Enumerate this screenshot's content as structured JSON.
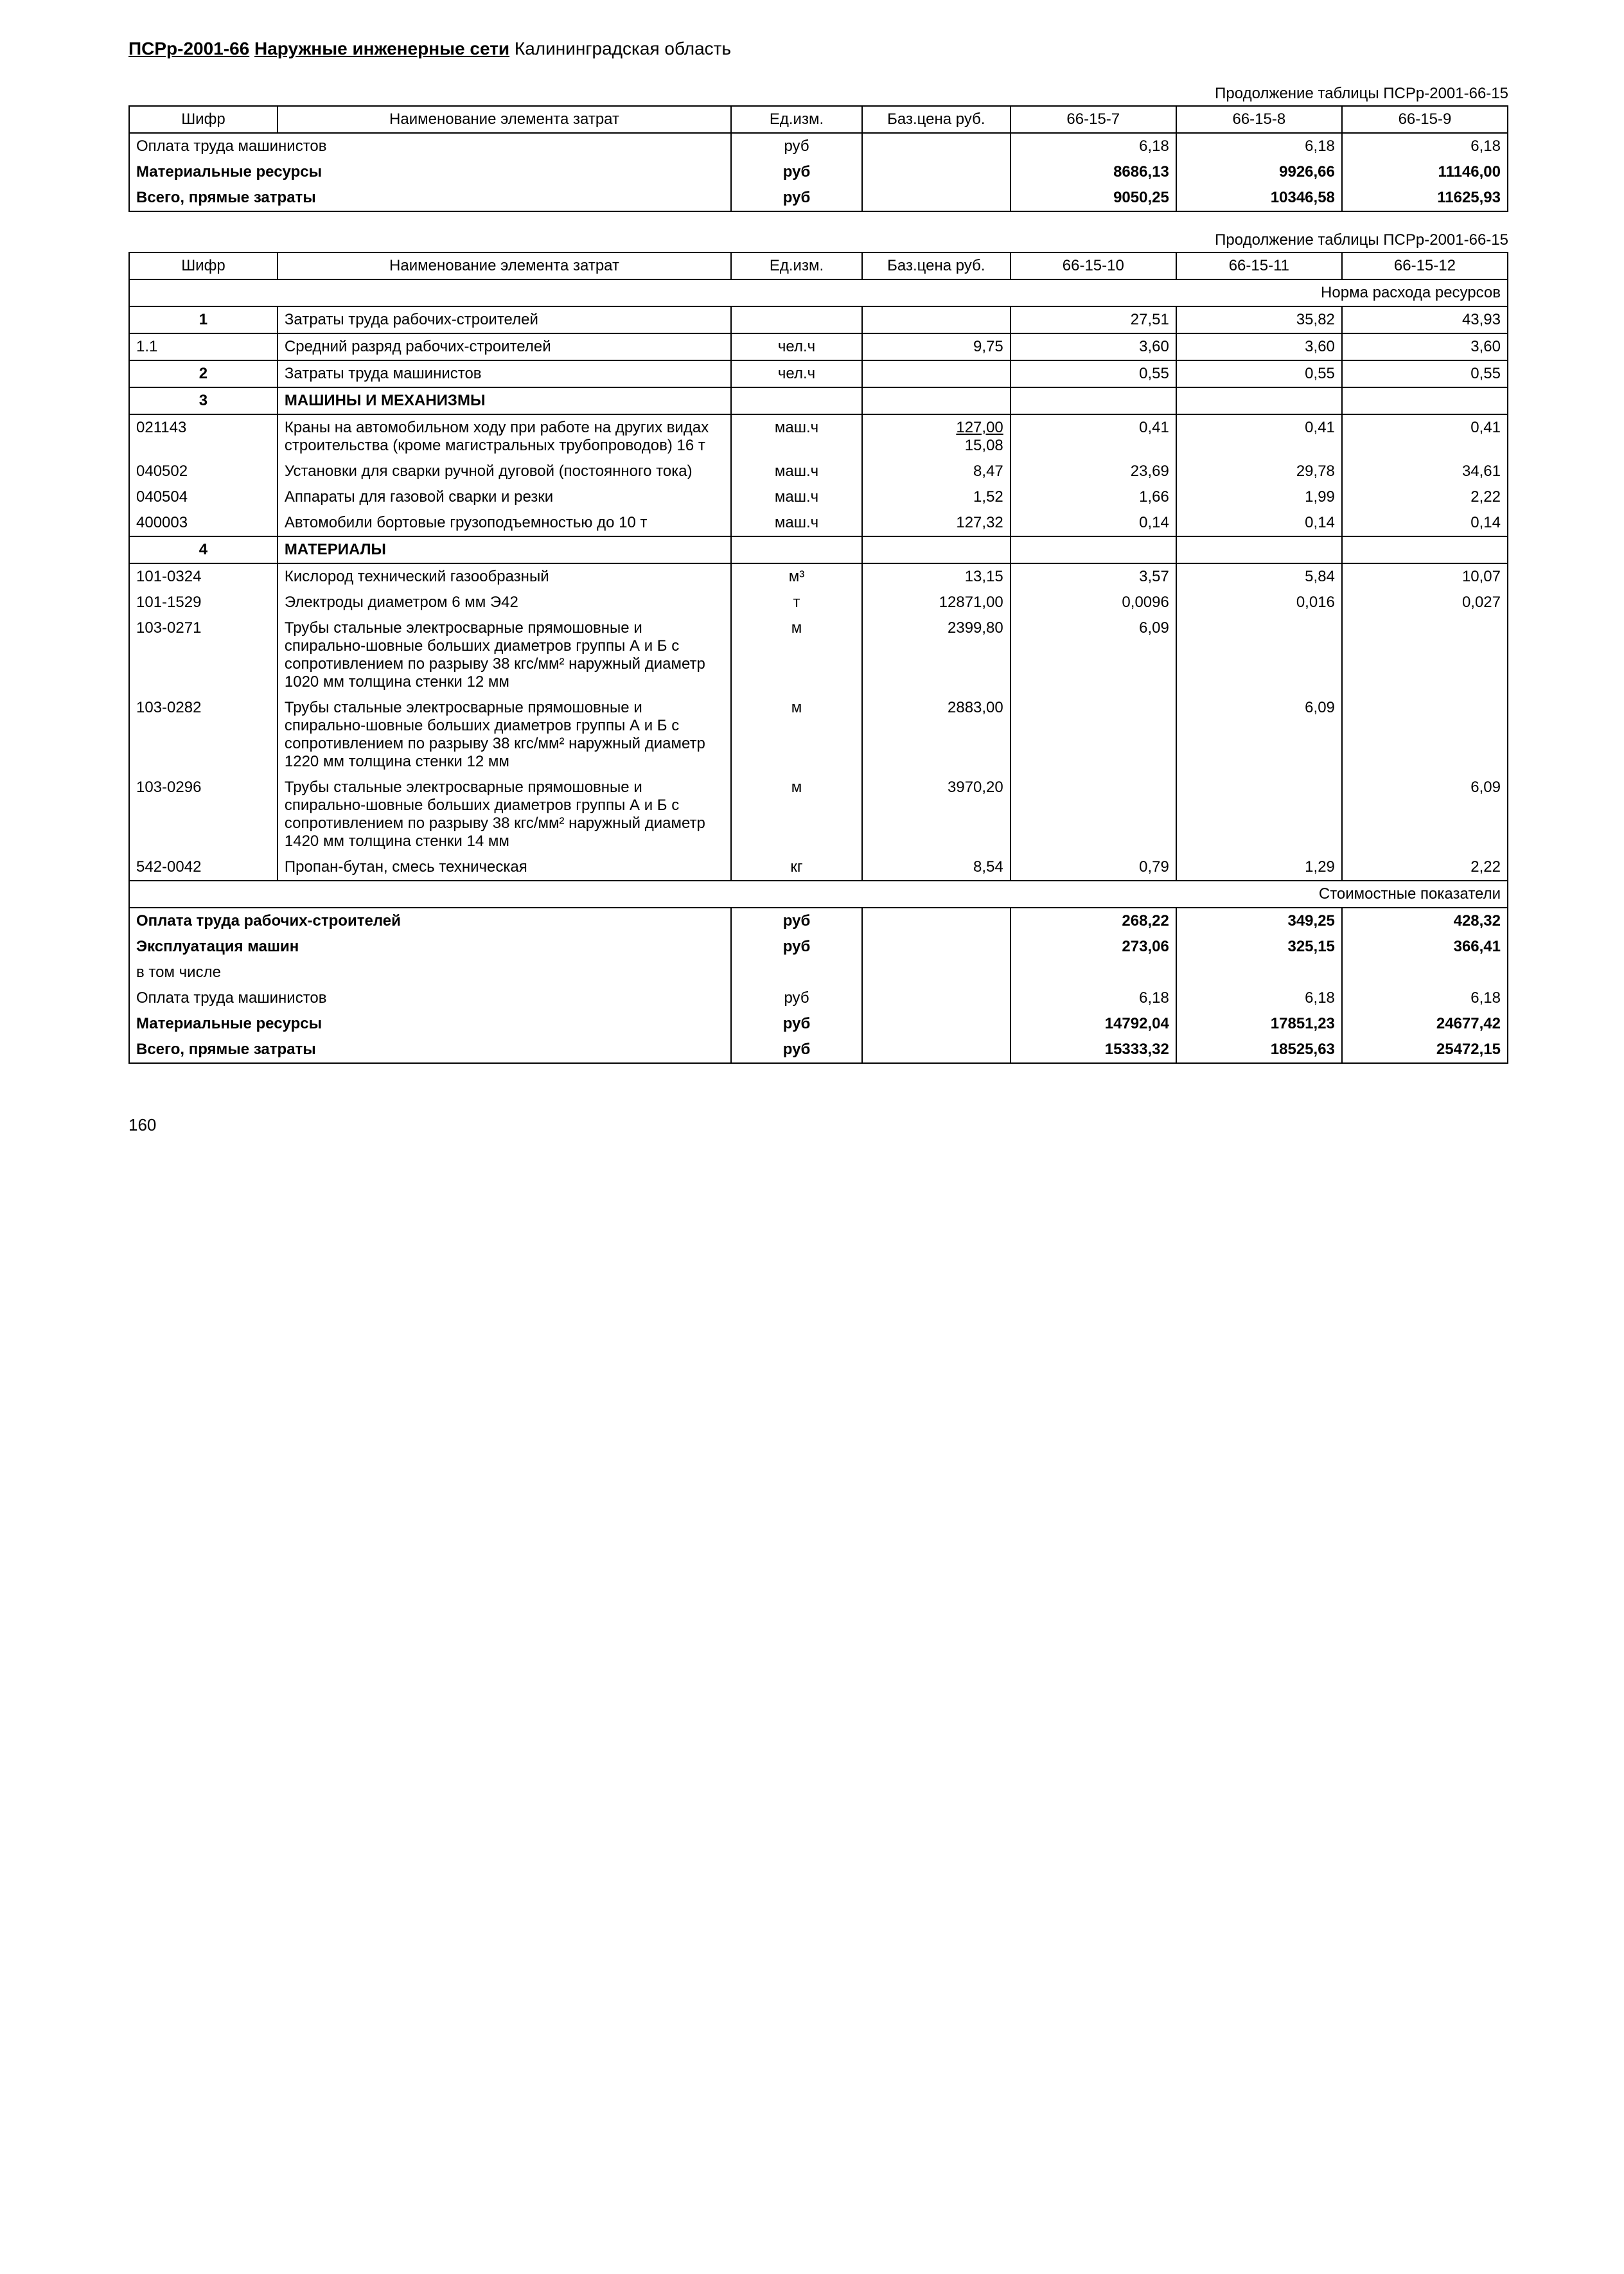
{
  "docTitle": {
    "code": "ПСРр-2001-66",
    "name": "Наружные инженерные сети",
    "region": "Калининградская область"
  },
  "tableA": {
    "continuation": "Продолжение таблицы ПСРр-2001-66-15",
    "head": {
      "c1": "Шифр",
      "c2": "Наименование элемента затрат",
      "c3": "Ед.изм.",
      "c4": "Баз.цена руб.",
      "c5": "66-15-7",
      "c6": "66-15-8",
      "c7": "66-15-9"
    },
    "rows": [
      {
        "name": "Оплата труда машинистов",
        "unit": "руб",
        "v1": "6,18",
        "v2": "6,18",
        "v3": "6,18"
      },
      {
        "name": "Материальные ресурсы",
        "unit": "руб",
        "v1": "8686,13",
        "v2": "9926,66",
        "v3": "11146,00",
        "bold": true
      },
      {
        "name": "Всего, прямые затраты",
        "unit": "руб",
        "v1": "9050,25",
        "v2": "10346,58",
        "v3": "11625,93",
        "bold": true
      }
    ]
  },
  "tableB": {
    "continuation": "Продолжение таблицы ПСРр-2001-66-15",
    "head": {
      "c1": "Шифр",
      "c2": "Наименование элемента затрат",
      "c3": "Ед.изм.",
      "c4": "Баз.цена руб.",
      "c5": "66-15-10",
      "c6": "66-15-11",
      "c7": "66-15-12"
    },
    "normLabel": "Норма расхода ресурсов",
    "rows": [
      {
        "shifr": "1",
        "bold_shifr": true,
        "name": "Затраты труда рабочих-строителей",
        "unit": "",
        "base": "",
        "v1": "27,51",
        "v2": "35,82",
        "v3": "43,93",
        "bb": true
      },
      {
        "shifr": "1.1",
        "name": "Средний разряд рабочих-строителей",
        "unit": "чел.ч",
        "base": "9,75",
        "v1": "3,60",
        "v2": "3,60",
        "v3": "3,60",
        "bb": true
      },
      {
        "shifr": "2",
        "bold_shifr": true,
        "name": "Затраты труда машинистов",
        "unit": "чел.ч",
        "base": "",
        "v1": "0,55",
        "v2": "0,55",
        "v3": "0,55",
        "bb": true
      },
      {
        "shifr": "3",
        "bold_shifr": true,
        "name": "МАШИНЫ И МЕХАНИЗМЫ",
        "name_bold": true,
        "unit": "",
        "base": "",
        "v1": "",
        "v2": "",
        "v3": "",
        "bb": true
      },
      {
        "shifr": "021143",
        "name": "Краны на автомобильном ходу при работе на других видах строительства (кроме магистральных трубопроводов) 16 т",
        "unit": "маш.ч",
        "base": "",
        "base_two": {
          "top": "127,00",
          "bot": "15,08"
        },
        "v1": "0,41",
        "v2": "0,41",
        "v3": "0,41"
      },
      {
        "shifr": "040502",
        "name": "Установки для сварки ручной дуговой (постоянного тока)",
        "unit": "маш.ч",
        "base": "8,47",
        "v1": "23,69",
        "v2": "29,78",
        "v3": "34,61"
      },
      {
        "shifr": "040504",
        "name": "Аппараты для газовой сварки и резки",
        "unit": "маш.ч",
        "base": "1,52",
        "v1": "1,66",
        "v2": "1,99",
        "v3": "2,22"
      },
      {
        "shifr": "400003",
        "name": "Автомобили бортовые грузоподъемностью до 10 т",
        "unit": "маш.ч",
        "base": "127,32",
        "v1": "0,14",
        "v2": "0,14",
        "v3": "0,14",
        "bb": true
      },
      {
        "shifr": "4",
        "bold_shifr": true,
        "name": "МАТЕРИАЛЫ",
        "name_bold": true,
        "unit": "",
        "base": "",
        "v1": "",
        "v2": "",
        "v3": "",
        "bb": true
      },
      {
        "shifr": "101-0324",
        "name": "Кислород технический газообразный",
        "unit": "м³",
        "base": "13,15",
        "v1": "3,57",
        "v2": "5,84",
        "v3": "10,07"
      },
      {
        "shifr": "101-1529",
        "name": "Электроды диаметром 6 мм Э42",
        "unit": "т",
        "base": "12871,00",
        "v1": "0,0096",
        "v2": "0,016",
        "v3": "0,027"
      },
      {
        "shifr": "103-0271",
        "name": "Трубы стальные электросварные прямошовные и спирально-шовные больших диаметров группы А и Б с сопротивлением по разрыву 38 кгс/мм² наружный диаметр 1020 мм толщина стенки 12 мм",
        "unit": "м",
        "base": "2399,80",
        "v1": "6,09",
        "v2": "",
        "v3": ""
      },
      {
        "shifr": "103-0282",
        "name": "Трубы стальные электросварные прямошовные и спирально-шовные больших диаметров группы А и Б с сопротивлением по разрыву 38 кгс/мм² наружный диаметр 1220 мм толщина стенки 12 мм",
        "unit": "м",
        "base": "2883,00",
        "v1": "",
        "v2": "6,09",
        "v3": ""
      },
      {
        "shifr": "103-0296",
        "name": "Трубы стальные электросварные прямошовные и спирально-шовные больших диаметров группы А и Б с сопротивлением по разрыву 38 кгс/мм² наружный диаметр 1420 мм толщина стенки 14 мм",
        "unit": "м",
        "base": "3970,20",
        "v1": "",
        "v2": "",
        "v3": "6,09"
      },
      {
        "shifr": "542-0042",
        "name": "Пропан-бутан, смесь техническая",
        "unit": "кг",
        "base": "8,54",
        "v1": "0,79",
        "v2": "1,29",
        "v3": "2,22",
        "bb": true
      }
    ],
    "costLabel": "Стоимостные показатели",
    "costRows": [
      {
        "name": "Оплата труда рабочих-строителей",
        "unit": "руб",
        "v1": "268,22",
        "v2": "349,25",
        "v3": "428,32",
        "bold": true
      },
      {
        "name": "Эксплуатация машин",
        "unit": "руб",
        "v1": "273,06",
        "v2": "325,15",
        "v3": "366,41",
        "bold": true
      },
      {
        "name": "в том числе",
        "unit": "",
        "v1": "",
        "v2": "",
        "v3": ""
      },
      {
        "name": "Оплата труда машинистов",
        "unit": "руб",
        "v1": "6,18",
        "v2": "6,18",
        "v3": "6,18"
      },
      {
        "name": "Материальные ресурсы",
        "unit": "руб",
        "v1": "14792,04",
        "v2": "17851,23",
        "v3": "24677,42",
        "bold": true
      },
      {
        "name": "Всего, прямые затраты",
        "unit": "руб",
        "v1": "15333,32",
        "v2": "18525,63",
        "v3": "25472,15",
        "bold": true
      }
    ]
  },
  "pageNumber": "160"
}
